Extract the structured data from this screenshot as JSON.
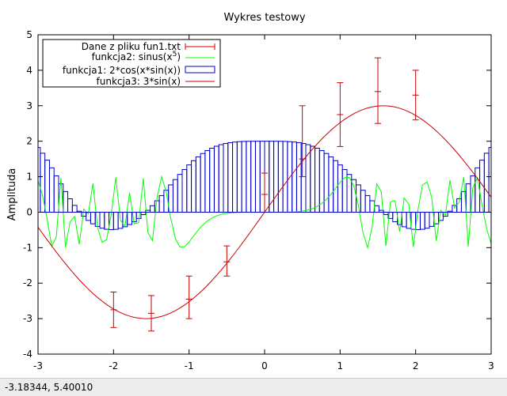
{
  "status_bar": {
    "coords": "-3.18344,  5.40010"
  },
  "chart_data": {
    "type": "line",
    "title": "Wykres testowy",
    "xlabel": "",
    "ylabel": "Amplituda",
    "xlim": [
      -3,
      3
    ],
    "ylim": [
      -4,
      5
    ],
    "x_ticks": [
      "-3",
      "-2",
      "-1",
      "0",
      "1",
      "2",
      "3"
    ],
    "y_ticks": [
      "-4",
      "-3",
      "-2",
      "-1",
      "0",
      "1",
      "2",
      "3",
      "4",
      "5"
    ],
    "grid": false,
    "legend_position": "top-left",
    "series": [
      {
        "name": "Dane z pliku fun1.txt",
        "kind": "errorbars",
        "color": "#cc0000",
        "points": [
          {
            "x": -2.0,
            "y": -2.75,
            "ylow": -3.25,
            "yhigh": -2.25
          },
          {
            "x": -1.5,
            "y": -2.85,
            "ylow": -3.35,
            "yhigh": -2.35
          },
          {
            "x": -1.0,
            "y": -2.45,
            "ylow": -3.0,
            "yhigh": -1.8
          },
          {
            "x": -0.5,
            "y": -1.4,
            "ylow": -1.8,
            "yhigh": -0.95
          },
          {
            "x": 0.0,
            "y": 0.5,
            "ylow": 0.0,
            "yhigh": 1.1
          },
          {
            "x": 0.5,
            "y": 1.5,
            "ylow": 1.0,
            "yhigh": 3.0
          },
          {
            "x": 1.0,
            "y": 2.75,
            "ylow": 1.85,
            "yhigh": 3.65
          },
          {
            "x": 1.5,
            "y": 3.4,
            "ylow": 2.5,
            "yhigh": 4.35
          },
          {
            "x": 2.0,
            "y": 3.3,
            "ylow": 2.6,
            "yhigh": 4.0
          }
        ]
      },
      {
        "name": "funkcja2: sinus(x",
        "name_sup": "5",
        "name_suffix": ")",
        "kind": "line",
        "color": "#00ff00",
        "formula": "sin(x^5)",
        "samples": 100
      },
      {
        "name": "funkcja1: 2*cos(x*sin(x))",
        "kind": "boxes",
        "color": "#0000cc",
        "formula": "2*cos(x*sin(x))",
        "samples": 100
      },
      {
        "name": "funkcja3: 3*sin(x)",
        "kind": "line",
        "color": "#cc0000",
        "formula": "3*sin(x)",
        "samples": 100
      }
    ]
  }
}
